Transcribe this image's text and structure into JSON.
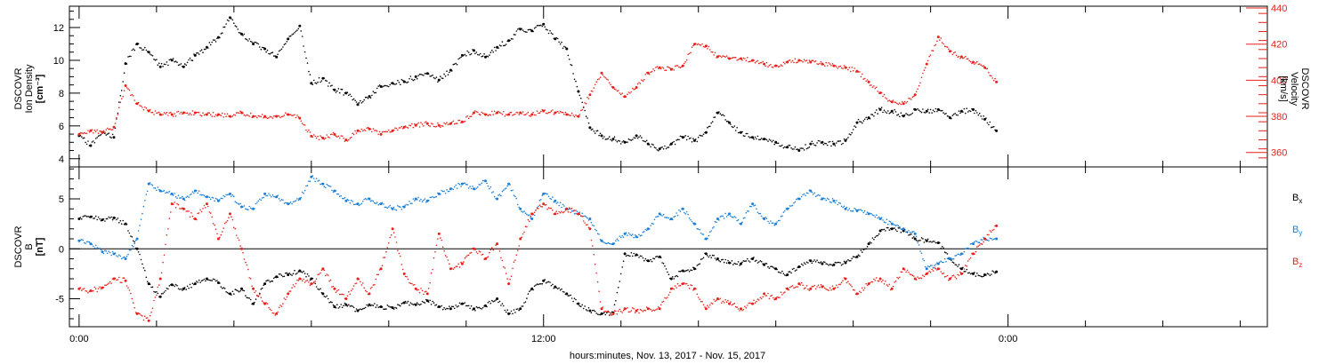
{
  "chart_data": [
    {
      "type": "scatter",
      "panel": "top",
      "ylabel_left_lines": [
        "DSCOVR",
        "Ion Density",
        "[cm⁻³]"
      ],
      "ylabel_right_lines": [
        "DSCOVR",
        "Velocity",
        "[km/s]"
      ],
      "y_left_ticks": [
        4,
        6,
        8,
        10,
        12
      ],
      "ylim_left": [
        3.5,
        13.3
      ],
      "y_right_ticks": [
        360,
        380,
        400,
        420,
        440
      ],
      "ylim_right": [
        352,
        441
      ],
      "series": [
        {
          "axis": "left",
          "color": "#000000",
          "x": [
            0.0,
            0.3,
            0.6,
            0.9,
            1.2,
            1.5,
            1.8,
            2.1,
            2.4,
            2.7,
            3.0,
            3.3,
            3.6,
            3.9,
            4.2,
            4.5,
            4.8,
            5.1,
            5.4,
            5.7,
            6.0,
            6.3,
            6.6,
            6.9,
            7.2,
            7.5,
            7.8,
            8.1,
            8.4,
            8.7,
            9.0,
            9.3,
            9.6,
            9.9,
            10.2,
            10.5,
            10.8,
            11.1,
            11.4,
            11.7,
            12.0,
            12.3,
            12.6,
            12.9,
            13.2,
            13.5,
            13.8,
            14.1,
            14.4,
            14.7,
            15.0,
            15.3,
            15.6,
            15.9,
            16.2,
            16.5,
            16.8,
            17.1,
            17.4,
            17.7,
            18.0,
            18.3,
            18.6,
            18.9,
            19.2,
            19.5,
            19.8,
            20.1,
            20.4,
            20.7,
            21.0,
            21.3,
            21.6,
            21.9,
            22.2,
            22.5,
            22.8,
            23.1,
            23.4,
            23.7
          ],
          "y": [
            5.4,
            4.8,
            5.6,
            5.3,
            9.8,
            11.0,
            10.5,
            9.6,
            10.0,
            9.6,
            10.3,
            10.8,
            11.4,
            12.6,
            11.6,
            11.0,
            10.7,
            10.2,
            11.3,
            12.1,
            8.6,
            8.9,
            8.2,
            8.0,
            7.3,
            7.8,
            8.4,
            8.6,
            8.7,
            9.0,
            9.2,
            8.8,
            9.4,
            10.3,
            10.6,
            10.2,
            10.8,
            11.2,
            11.9,
            11.8,
            12.2,
            11.3,
            10.7,
            8.1,
            5.9,
            5.4,
            5.2,
            5.0,
            5.4,
            4.9,
            4.6,
            4.9,
            5.3,
            5.1,
            5.6,
            6.8,
            6.2,
            5.6,
            5.3,
            5.2,
            5.0,
            4.7,
            4.5,
            4.9,
            5.0,
            4.9,
            5.1,
            6.2,
            6.5,
            7.0,
            6.9,
            6.6,
            7.0,
            6.9,
            7.0,
            6.5,
            6.9,
            7.0,
            6.4,
            5.7
          ]
        },
        {
          "axis": "right",
          "color": "#e8201a",
          "x": [
            0.0,
            0.3,
            0.6,
            0.9,
            1.2,
            1.5,
            1.8,
            2.1,
            2.4,
            2.7,
            3.0,
            3.3,
            3.6,
            3.9,
            4.2,
            4.5,
            4.8,
            5.1,
            5.4,
            5.7,
            6.0,
            6.3,
            6.6,
            6.9,
            7.2,
            7.5,
            7.8,
            8.1,
            8.4,
            8.7,
            9.0,
            9.3,
            9.6,
            9.9,
            10.2,
            10.5,
            10.8,
            11.1,
            11.4,
            11.7,
            12.0,
            12.3,
            12.6,
            12.9,
            13.2,
            13.5,
            13.8,
            14.1,
            14.4,
            14.7,
            15.0,
            15.3,
            15.6,
            15.9,
            16.2,
            16.5,
            16.8,
            17.1,
            17.4,
            17.7,
            18.0,
            18.3,
            18.6,
            18.9,
            19.2,
            19.5,
            19.8,
            20.1,
            20.4,
            20.7,
            21.0,
            21.3,
            21.6,
            21.9,
            22.2,
            22.5,
            22.8,
            23.1,
            23.4,
            23.7
          ],
          "y": [
            370,
            372,
            371,
            374,
            397,
            387,
            383,
            381,
            381,
            382,
            382,
            381,
            381,
            380,
            382,
            380,
            380,
            380,
            381,
            379,
            369,
            368,
            370,
            367,
            372,
            373,
            370,
            372,
            374,
            375,
            376,
            375,
            376,
            377,
            382,
            381,
            382,
            381,
            382,
            381,
            383,
            382,
            381,
            380,
            392,
            404,
            396,
            391,
            396,
            404,
            407,
            406,
            408,
            420,
            419,
            413,
            412,
            412,
            411,
            409,
            408,
            410,
            411,
            410,
            409,
            408,
            407,
            405,
            399,
            393,
            388,
            387,
            392,
            409,
            424,
            416,
            413,
            410,
            407,
            399
          ]
        }
      ]
    },
    {
      "type": "scatter",
      "panel": "bottom",
      "ylabel_left_lines": [
        "DSCOVR",
        "B",
        "[nT]"
      ],
      "y_ticks": [
        -5,
        0,
        5
      ],
      "ylim": [
        -7.8,
        8.2
      ],
      "zero_line": true,
      "legend": [
        {
          "main": "B",
          "sub": "x",
          "color": "#000000"
        },
        {
          "main": "B",
          "sub": "y",
          "color": "#1a7fd6"
        },
        {
          "main": "B",
          "sub": "z",
          "color": "#e8201a"
        }
      ],
      "series": [
        {
          "name": "Bx",
          "color": "#000000",
          "x": [
            0.0,
            0.3,
            0.6,
            0.9,
            1.2,
            1.5,
            1.8,
            2.1,
            2.4,
            2.7,
            3.0,
            3.3,
            3.6,
            3.9,
            4.2,
            4.5,
            4.8,
            5.1,
            5.4,
            5.7,
            6.0,
            6.3,
            6.6,
            6.9,
            7.2,
            7.5,
            7.8,
            8.1,
            8.4,
            8.7,
            9.0,
            9.3,
            9.6,
            9.9,
            10.2,
            10.5,
            10.8,
            11.1,
            11.4,
            11.7,
            12.0,
            12.3,
            12.6,
            12.9,
            13.2,
            13.5,
            13.8,
            14.1,
            14.4,
            14.7,
            15.0,
            15.3,
            15.6,
            15.9,
            16.2,
            16.5,
            16.8,
            17.1,
            17.4,
            17.7,
            18.0,
            18.3,
            18.6,
            18.9,
            19.2,
            19.5,
            19.8,
            20.1,
            20.4,
            20.7,
            21.0,
            21.3,
            21.6,
            21.9,
            22.2,
            22.5,
            22.8,
            23.1,
            23.4,
            23.7
          ],
          "y": [
            3.0,
            3.2,
            2.9,
            3.1,
            2.5,
            0.0,
            -3.5,
            -4.8,
            -3.6,
            -4.0,
            -3.5,
            -3.0,
            -3.4,
            -4.5,
            -4.0,
            -5.5,
            -3.5,
            -2.8,
            -2.6,
            -2.2,
            -3.0,
            -4.5,
            -5.8,
            -5.6,
            -6.2,
            -5.6,
            -5.8,
            -5.9,
            -5.4,
            -5.6,
            -5.2,
            -5.8,
            -6.0,
            -5.5,
            -6.0,
            -5.7,
            -5.0,
            -6.5,
            -6.0,
            -4.0,
            -3.2,
            -3.8,
            -4.5,
            -5.5,
            -6.2,
            -6.5,
            -6.4,
            -0.5,
            -0.6,
            -1.2,
            -0.8,
            -3.0,
            -2.2,
            -2.0,
            -0.5,
            -1.0,
            -1.4,
            -1.5,
            -1.0,
            -1.6,
            -2.0,
            -2.6,
            -1.8,
            -1.2,
            -1.5,
            -1.6,
            -1.4,
            -0.8,
            0.5,
            1.8,
            2.0,
            1.8,
            1.0,
            0.8,
            0.6,
            -1.0,
            -2.0,
            -2.5,
            -2.6,
            -2.3
          ]
        },
        {
          "name": "By",
          "color": "#1a7fd6",
          "x": [
            0.0,
            0.3,
            0.6,
            0.9,
            1.2,
            1.5,
            1.8,
            2.1,
            2.4,
            2.7,
            3.0,
            3.3,
            3.6,
            3.9,
            4.2,
            4.5,
            4.8,
            5.1,
            5.4,
            5.7,
            6.0,
            6.3,
            6.6,
            6.9,
            7.2,
            7.5,
            7.8,
            8.1,
            8.4,
            8.7,
            9.0,
            9.3,
            9.6,
            9.9,
            10.2,
            10.5,
            10.8,
            11.1,
            11.4,
            11.7,
            12.0,
            12.3,
            12.6,
            12.9,
            13.2,
            13.5,
            13.8,
            14.1,
            14.4,
            14.7,
            15.0,
            15.3,
            15.6,
            15.9,
            16.2,
            16.5,
            16.8,
            17.1,
            17.4,
            17.7,
            18.0,
            18.3,
            18.6,
            18.9,
            19.2,
            19.5,
            19.8,
            20.1,
            20.4,
            20.7,
            21.0,
            21.3,
            21.6,
            21.9,
            22.2,
            22.5,
            22.8,
            23.1,
            23.4,
            23.7
          ],
          "y": [
            0.8,
            0.5,
            -0.3,
            -0.5,
            -1.0,
            1.0,
            6.5,
            5.8,
            5.5,
            5.0,
            5.8,
            5.2,
            4.8,
            5.5,
            4.2,
            4.0,
            5.5,
            5.2,
            4.5,
            5.0,
            7.2,
            6.5,
            5.8,
            4.8,
            4.5,
            5.0,
            4.5,
            4.0,
            4.2,
            5.0,
            4.8,
            5.5,
            6.0,
            6.5,
            6.0,
            6.8,
            5.0,
            6.5,
            4.0,
            3.0,
            5.5,
            4.8,
            4.0,
            3.5,
            3.0,
            0.8,
            0.5,
            1.5,
            1.2,
            2.0,
            3.5,
            3.0,
            4.0,
            2.5,
            1.0,
            3.0,
            3.5,
            2.5,
            4.5,
            3.0,
            2.5,
            4.0,
            5.0,
            5.8,
            5.0,
            4.8,
            4.0,
            3.8,
            3.5,
            3.0,
            2.5,
            2.0,
            1.5,
            -2.0,
            -1.5,
            -1.0,
            -0.5,
            0.5,
            1.0,
            1.0
          ]
        },
        {
          "name": "Bz",
          "color": "#e8201a",
          "x": [
            0.0,
            0.3,
            0.6,
            0.9,
            1.2,
            1.5,
            1.8,
            2.1,
            2.4,
            2.7,
            3.0,
            3.3,
            3.6,
            3.9,
            4.2,
            4.5,
            4.8,
            5.1,
            5.4,
            5.7,
            6.0,
            6.3,
            6.6,
            6.9,
            7.2,
            7.5,
            7.8,
            8.1,
            8.4,
            8.7,
            9.0,
            9.3,
            9.6,
            9.9,
            10.2,
            10.5,
            10.8,
            11.1,
            11.4,
            11.7,
            12.0,
            12.3,
            12.6,
            12.9,
            13.2,
            13.5,
            13.8,
            14.1,
            14.4,
            14.7,
            15.0,
            15.3,
            15.6,
            15.9,
            16.2,
            16.5,
            16.8,
            17.1,
            17.4,
            17.7,
            18.0,
            18.3,
            18.6,
            18.9,
            19.2,
            19.5,
            19.8,
            20.1,
            20.4,
            20.7,
            21.0,
            21.3,
            21.6,
            21.9,
            22.2,
            22.5,
            22.8,
            23.1,
            23.4,
            23.7
          ],
          "y": [
            -4.0,
            -4.2,
            -3.9,
            -3.0,
            -3.2,
            -6.5,
            -7.2,
            -3.0,
            4.5,
            4.0,
            3.0,
            4.5,
            1.0,
            3.5,
            0.0,
            -4.0,
            -5.5,
            -6.5,
            -4.5,
            -3.0,
            -3.5,
            -2.0,
            -4.0,
            -5.0,
            -3.0,
            -4.5,
            -2.0,
            2.0,
            -2.5,
            -4.0,
            -4.5,
            1.5,
            -2.0,
            -1.5,
            0.0,
            -1.0,
            0.5,
            -3.5,
            1.0,
            3.5,
            4.5,
            3.5,
            4.0,
            3.5,
            2.0,
            -6.0,
            -6.5,
            -6.0,
            -6.2,
            -6.0,
            -6.0,
            -4.0,
            -3.5,
            -4.0,
            -6.0,
            -5.0,
            -5.5,
            -6.0,
            -5.5,
            -4.5,
            -5.0,
            -4.0,
            -3.5,
            -4.0,
            -3.8,
            -4.0,
            -3.0,
            -4.5,
            -3.5,
            -3.0,
            -4.0,
            -2.0,
            -3.0,
            -2.5,
            -2.0,
            -3.0,
            -2.5,
            -0.5,
            1.0,
            2.3
          ]
        }
      ]
    }
  ],
  "x_axis": {
    "xlim": [
      -0.25,
      30.7
    ],
    "label": "hours:minutes, Nov. 13, 2017 - Nov. 15, 2017",
    "labeled_ticks": [
      {
        "x": 0,
        "label": "0:00"
      },
      {
        "x": 12,
        "label": "12:00"
      },
      {
        "x": 24,
        "label": "0:00"
      }
    ],
    "minor_ticks": [
      2,
      4,
      6,
      8,
      10,
      14,
      16,
      18,
      20,
      22,
      26,
      28,
      30
    ]
  }
}
